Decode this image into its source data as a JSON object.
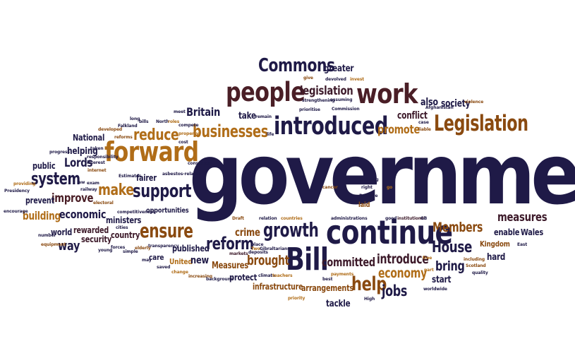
{
  "words": [
    {
      "text": "government",
      "color": "#1f1a47"
    },
    {
      "text": "continue",
      "color": "#1f1a47"
    },
    {
      "text": "forward",
      "color": "#b06d18"
    },
    {
      "text": "introduced",
      "color": "#1f1a47"
    },
    {
      "text": "people",
      "color": "#4a1e26"
    },
    {
      "text": "work",
      "color": "#4a1e26"
    },
    {
      "text": "Legislation",
      "color": "#8a4a10"
    },
    {
      "text": "Bill",
      "color": "#1f1a47"
    },
    {
      "text": "Commons",
      "color": "#1f1a47"
    },
    {
      "text": "businesses",
      "color": "#b06d18"
    },
    {
      "text": "reduce",
      "color": "#b06d18"
    },
    {
      "text": "support",
      "color": "#1f1a47"
    },
    {
      "text": "ensure",
      "color": "#8a4a10"
    },
    {
      "text": "growth",
      "color": "#1f1a47"
    },
    {
      "text": "reform",
      "color": "#1f1a47"
    },
    {
      "text": "system",
      "color": "#1f1a47"
    },
    {
      "text": "make",
      "color": "#b06d18"
    },
    {
      "text": "improve",
      "color": "#4a1e26"
    },
    {
      "text": "legislation",
      "color": "#3d1a2a"
    },
    {
      "text": "Members",
      "color": "#8a4a10"
    },
    {
      "text": "House",
      "color": "#1f1a47"
    },
    {
      "text": "help",
      "color": "#8a4a10"
    },
    {
      "text": "economy",
      "color": "#b06d18"
    },
    {
      "text": "introduce",
      "color": "#3d1a2a"
    },
    {
      "text": "committed",
      "color": "#3d1a2a"
    },
    {
      "text": "brought",
      "color": "#8a4a10"
    },
    {
      "text": "measures",
      "color": "#3d1a2a"
    },
    {
      "text": "bring",
      "color": "#1f1a47"
    },
    {
      "text": "promote",
      "color": "#b06d18"
    },
    {
      "text": "jobs",
      "color": "#1f1a47"
    },
    {
      "text": "Britain",
      "color": "#1f1a47"
    },
    {
      "text": "Lords",
      "color": "#1f1a47"
    },
    {
      "text": "building",
      "color": "#b06d18"
    },
    {
      "text": "economic",
      "color": "#1f1a47"
    },
    {
      "text": "way",
      "color": "#1f1a47"
    },
    {
      "text": "crime",
      "color": "#8a4a10"
    },
    {
      "text": "also",
      "color": "#1f1a47"
    },
    {
      "text": "society",
      "color": "#1f1a47"
    },
    {
      "text": "conflict",
      "color": "#3d1a2a"
    },
    {
      "text": "take",
      "color": "#1f1a47"
    },
    {
      "text": "greater",
      "color": "#1f1a47"
    },
    {
      "text": "National",
      "color": "#1f1a47"
    },
    {
      "text": "helping",
      "color": "#1f1a47"
    },
    {
      "text": "public",
      "color": "#1f1a47"
    },
    {
      "text": "prevent",
      "color": "#1f1a47"
    },
    {
      "text": "world",
      "color": "#1f1a47"
    },
    {
      "text": "rewarded",
      "color": "#3d1a2a"
    },
    {
      "text": "security",
      "color": "#3d1a2a"
    },
    {
      "text": "country",
      "color": "#3d1a2a"
    },
    {
      "text": "ministers",
      "color": "#1f1a47"
    },
    {
      "text": "fairer",
      "color": "#1f1a47"
    },
    {
      "text": "opportunities",
      "color": "#1f1a47"
    },
    {
      "text": "care",
      "color": "#1f1a47"
    },
    {
      "text": "United",
      "color": "#b06d18"
    },
    {
      "text": "published",
      "color": "#1f1a47"
    },
    {
      "text": "new",
      "color": "#1f1a47"
    },
    {
      "text": "Measures",
      "color": "#8a4a10"
    },
    {
      "text": "protect",
      "color": "#1f1a47"
    },
    {
      "text": "infrastructure",
      "color": "#8a4a10"
    },
    {
      "text": "arrangements",
      "color": "#8a4a10"
    },
    {
      "text": "tackle",
      "color": "#1f1a47"
    },
    {
      "text": "start",
      "color": "#1f1a47"
    },
    {
      "text": "hard",
      "color": "#1f1a47"
    },
    {
      "text": "Kingdom",
      "color": "#8a4a10"
    },
    {
      "text": "enable",
      "color": "#1f1a47"
    },
    {
      "text": "Wales",
      "color": "#1f1a47"
    },
    {
      "text": "laid",
      "color": "#8a4a10"
    },
    {
      "text": "cancer",
      "color": "#8a4a10"
    },
    {
      "text": "opening",
      "color": "#1f1a47"
    },
    {
      "text": "right",
      "color": "#1f1a47"
    },
    {
      "text": "Reserve",
      "color": "#1f1a47"
    },
    {
      "text": "go",
      "color": "#b06d18"
    },
    {
      "text": "Draft",
      "color": "#8a4a10"
    },
    {
      "text": "relation",
      "color": "#1f1a47"
    },
    {
      "text": "countries",
      "color": "#b06d18"
    },
    {
      "text": "administrations",
      "color": "#1f1a47"
    },
    {
      "text": "good",
      "color": "#1f1a47"
    },
    {
      "text": "institutional",
      "color": "#3d1a2a"
    },
    {
      "text": "GB",
      "color": "#1f1a47"
    },
    {
      "text": "markets",
      "color": "#3d1a2a"
    },
    {
      "text": "deposits",
      "color": "#1f1a47"
    },
    {
      "text": "place",
      "color": "#1f1a47"
    },
    {
      "text": "Two",
      "color": "#b06d18"
    },
    {
      "text": "Gibraltarians",
      "color": "#1f1a47"
    },
    {
      "text": "climate",
      "color": "#1f1a47"
    },
    {
      "text": "teachers",
      "color": "#b06d18"
    },
    {
      "text": "priority",
      "color": "#b06d18"
    },
    {
      "text": "payments",
      "color": "#b06d18"
    },
    {
      "text": "best",
      "color": "#1f1a47"
    },
    {
      "text": "High",
      "color": "#1f1a47"
    },
    {
      "text": "free",
      "color": "#b06d18"
    },
    {
      "text": "part",
      "color": "#b06d18"
    },
    {
      "text": "worldwide",
      "color": "#1f1a47"
    },
    {
      "text": "including",
      "color": "#8a4a10"
    },
    {
      "text": "Scotland",
      "color": "#8a4a10"
    },
    {
      "text": "quality",
      "color": "#1f1a47"
    },
    {
      "text": "East",
      "color": "#1f1a47"
    },
    {
      "text": "violence",
      "color": "#8a4a10"
    },
    {
      "text": "Afghanistan",
      "color": "#1f1a47"
    },
    {
      "text": "case",
      "color": "#1f1a47"
    },
    {
      "text": "liable",
      "color": "#8a4a10"
    },
    {
      "text": "Commission",
      "color": "#1f1a47"
    },
    {
      "text": "strengthening",
      "color": "#1f1a47"
    },
    {
      "text": "prioritise",
      "color": "#1f1a47"
    },
    {
      "text": "assuming",
      "color": "#1f1a47"
    },
    {
      "text": "give",
      "color": "#8a4a10"
    },
    {
      "text": "devolved",
      "color": "#1f1a47"
    },
    {
      "text": "invest",
      "color": "#b06d18"
    },
    {
      "text": "remain",
      "color": "#1f1a47"
    },
    {
      "text": "life",
      "color": "#1f1a47"
    },
    {
      "text": "meet",
      "color": "#1f1a47"
    },
    {
      "text": "compete",
      "color": "#1f1a47"
    },
    {
      "text": "property",
      "color": "#b06d18"
    },
    {
      "text": "cost",
      "color": "#1f1a47"
    },
    {
      "text": "consumer",
      "color": "#1f1a47"
    },
    {
      "text": "asbestos-related",
      "color": "#1f1a47"
    },
    {
      "text": "Estimates",
      "color": "#1f1a47"
    },
    {
      "text": "long",
      "color": "#1f1a47"
    },
    {
      "text": "bills",
      "color": "#1f1a47"
    },
    {
      "text": "North",
      "color": "#1f1a47"
    },
    {
      "text": "roles",
      "color": "#b06d18"
    },
    {
      "text": "Falkland",
      "color": "#1f1a47"
    },
    {
      "text": "developed",
      "color": "#8a4a10"
    },
    {
      "text": "reforms",
      "color": "#8a4a10"
    },
    {
      "text": "taken",
      "color": "#1f1a47"
    },
    {
      "text": "progress",
      "color": "#1f1a47"
    },
    {
      "text": "responsibility",
      "color": "#1f1a47"
    },
    {
      "text": "interest",
      "color": "#1f1a47"
    },
    {
      "text": "internet",
      "color": "#8a4a10"
    },
    {
      "text": "law",
      "color": "#1f1a47"
    },
    {
      "text": "exam",
      "color": "#1f1a47"
    },
    {
      "text": "railway",
      "color": "#1f1a47"
    },
    {
      "text": "electoral",
      "color": "#8a4a10"
    },
    {
      "text": "competitiveness",
      "color": "#1f1a47"
    },
    {
      "text": "cities",
      "color": "#1f1a47"
    },
    {
      "text": "young",
      "color": "#1f1a47"
    },
    {
      "text": "forces",
      "color": "#1f1a47"
    },
    {
      "text": "simple",
      "color": "#1f1a47"
    },
    {
      "text": "elderly",
      "color": "#8a4a10"
    },
    {
      "text": "transparency",
      "color": "#1f1a47"
    },
    {
      "text": "may",
      "color": "#1f1a47"
    },
    {
      "text": "saved",
      "color": "#1f1a47"
    },
    {
      "text": "change",
      "color": "#b06d18"
    },
    {
      "text": "increasing",
      "color": "#8a4a10"
    },
    {
      "text": "background",
      "color": "#1f1a47"
    },
    {
      "text": "providing",
      "color": "#b06d18"
    },
    {
      "text": "Presidency",
      "color": "#1f1a47"
    },
    {
      "text": "encourage",
      "color": "#1f1a47"
    },
    {
      "text": "number",
      "color": "#1f1a47"
    },
    {
      "text": "equipment",
      "color": "#8a4a10"
    }
  ]
}
